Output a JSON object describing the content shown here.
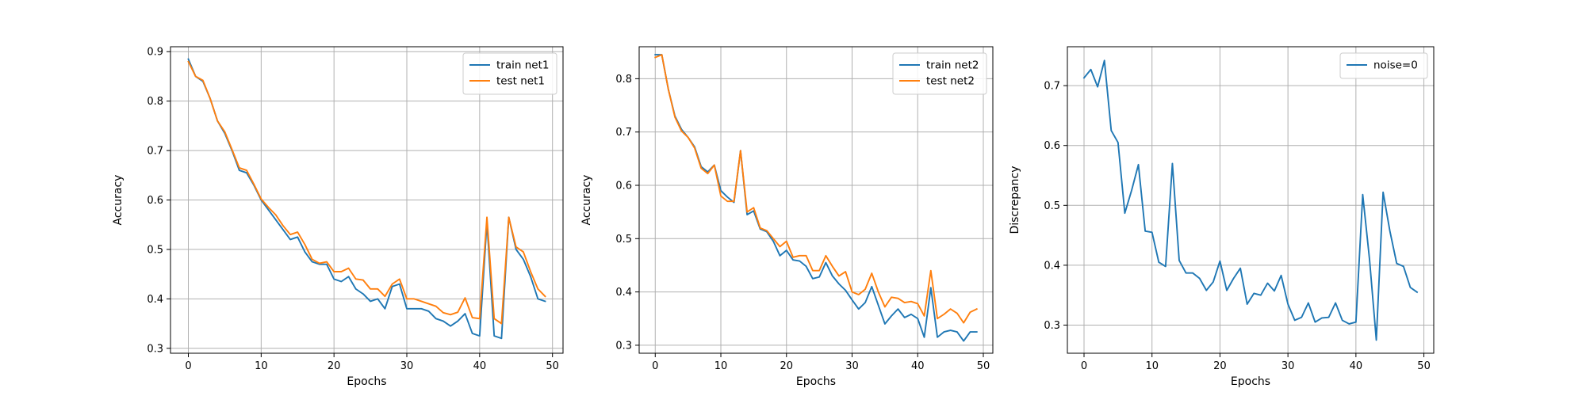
{
  "chart_data": [
    {
      "type": "line",
      "xlabel": "Epochs",
      "ylabel": "Accuracy",
      "xlim": [
        -2.45,
        51.45
      ],
      "ylim": [
        0.29,
        0.91
      ],
      "xticks": [
        0,
        10,
        20,
        30,
        40,
        50
      ],
      "yticks": [
        0.3,
        0.4,
        0.5,
        0.6,
        0.7,
        0.8,
        0.9
      ],
      "grid": true,
      "legend_position": "upper right",
      "series": [
        {
          "name": "train net1",
          "color": "#1f77b4",
          "x": [
            0,
            1,
            2,
            3,
            4,
            5,
            6,
            7,
            8,
            9,
            10,
            11,
            12,
            13,
            14,
            15,
            16,
            17,
            18,
            19,
            20,
            21,
            22,
            23,
            24,
            25,
            26,
            27,
            28,
            29,
            30,
            31,
            32,
            33,
            34,
            35,
            36,
            37,
            38,
            39,
            40,
            41,
            42,
            43,
            44,
            45,
            46,
            47,
            48,
            49
          ],
          "values": [
            0.885,
            0.85,
            0.84,
            0.805,
            0.76,
            0.735,
            0.7,
            0.66,
            0.655,
            0.63,
            0.6,
            0.58,
            0.56,
            0.54,
            0.52,
            0.525,
            0.495,
            0.475,
            0.47,
            0.47,
            0.44,
            0.435,
            0.445,
            0.42,
            0.41,
            0.395,
            0.4,
            0.38,
            0.425,
            0.43,
            0.38,
            0.38,
            0.38,
            0.375,
            0.36,
            0.355,
            0.345,
            0.355,
            0.37,
            0.33,
            0.325,
            0.555,
            0.325,
            0.32,
            0.565,
            0.5,
            0.48,
            0.445,
            0.4,
            0.395
          ]
        },
        {
          "name": "test net1",
          "color": "#ff7f0e",
          "x": [
            0,
            1,
            2,
            3,
            4,
            5,
            6,
            7,
            8,
            9,
            10,
            11,
            12,
            13,
            14,
            15,
            16,
            17,
            18,
            19,
            20,
            21,
            22,
            23,
            24,
            25,
            26,
            27,
            28,
            29,
            30,
            31,
            32,
            33,
            34,
            35,
            36,
            37,
            38,
            39,
            40,
            41,
            42,
            43,
            44,
            45,
            46,
            47,
            48,
            49
          ],
          "values": [
            0.88,
            0.85,
            0.842,
            0.805,
            0.76,
            0.738,
            0.702,
            0.665,
            0.66,
            0.632,
            0.602,
            0.585,
            0.57,
            0.548,
            0.53,
            0.535,
            0.51,
            0.48,
            0.472,
            0.475,
            0.455,
            0.455,
            0.462,
            0.44,
            0.438,
            0.42,
            0.42,
            0.405,
            0.43,
            0.44,
            0.4,
            0.4,
            0.395,
            0.39,
            0.385,
            0.372,
            0.368,
            0.373,
            0.402,
            0.362,
            0.36,
            0.565,
            0.36,
            0.35,
            0.565,
            0.505,
            0.495,
            0.455,
            0.42,
            0.405
          ]
        }
      ]
    },
    {
      "type": "line",
      "xlabel": "Epochs",
      "ylabel": "Accuracy",
      "xlim": [
        -2.45,
        51.45
      ],
      "ylim": [
        0.285,
        0.86
      ],
      "xticks": [
        0,
        10,
        20,
        30,
        40,
        50
      ],
      "yticks": [
        0.3,
        0.4,
        0.5,
        0.6,
        0.7,
        0.8
      ],
      "grid": true,
      "legend_position": "upper right",
      "series": [
        {
          "name": "train net2",
          "color": "#1f77b4",
          "x": [
            0,
            1,
            2,
            3,
            4,
            5,
            6,
            7,
            8,
            9,
            10,
            11,
            12,
            13,
            14,
            15,
            16,
            17,
            18,
            19,
            20,
            21,
            22,
            23,
            24,
            25,
            26,
            27,
            28,
            29,
            30,
            31,
            32,
            33,
            34,
            35,
            36,
            37,
            38,
            39,
            40,
            41,
            42,
            43,
            44,
            45,
            46,
            47,
            48,
            49
          ],
          "values": [
            0.845,
            0.845,
            0.78,
            0.73,
            0.705,
            0.69,
            0.672,
            0.635,
            0.625,
            0.638,
            0.59,
            0.578,
            0.568,
            0.665,
            0.545,
            0.552,
            0.518,
            0.513,
            0.495,
            0.468,
            0.478,
            0.46,
            0.458,
            0.448,
            0.425,
            0.428,
            0.455,
            0.43,
            0.415,
            0.403,
            0.385,
            0.368,
            0.38,
            0.41,
            0.375,
            0.34,
            0.355,
            0.368,
            0.352,
            0.358,
            0.35,
            0.315,
            0.408,
            0.315,
            0.325,
            0.328,
            0.325,
            0.308,
            0.325,
            0.325
          ]
        },
        {
          "name": "test net2",
          "color": "#ff7f0e",
          "x": [
            0,
            1,
            2,
            3,
            4,
            5,
            6,
            7,
            8,
            9,
            10,
            11,
            12,
            13,
            14,
            15,
            16,
            17,
            18,
            19,
            20,
            21,
            22,
            23,
            24,
            25,
            26,
            27,
            28,
            29,
            30,
            31,
            32,
            33,
            34,
            35,
            36,
            37,
            38,
            39,
            40,
            41,
            42,
            43,
            44,
            45,
            46,
            47,
            48,
            49
          ],
          "values": [
            0.84,
            0.845,
            0.78,
            0.728,
            0.702,
            0.69,
            0.67,
            0.632,
            0.622,
            0.638,
            0.58,
            0.57,
            0.57,
            0.665,
            0.55,
            0.558,
            0.52,
            0.515,
            0.5,
            0.485,
            0.495,
            0.465,
            0.468,
            0.468,
            0.44,
            0.44,
            0.468,
            0.448,
            0.43,
            0.438,
            0.4,
            0.395,
            0.405,
            0.435,
            0.4,
            0.372,
            0.39,
            0.388,
            0.38,
            0.382,
            0.378,
            0.355,
            0.44,
            0.35,
            0.358,
            0.368,
            0.36,
            0.342,
            0.362,
            0.368
          ]
        }
      ]
    },
    {
      "type": "line",
      "xlabel": "Epochs",
      "ylabel": "Discrepancy",
      "xlim": [
        -2.45,
        51.45
      ],
      "ylim": [
        0.253,
        0.765
      ],
      "xticks": [
        0,
        10,
        20,
        30,
        40,
        50
      ],
      "yticks": [
        0.3,
        0.4,
        0.5,
        0.6,
        0.7
      ],
      "grid": true,
      "legend_position": "upper right",
      "series": [
        {
          "name": "noise=0",
          "color": "#1f77b4",
          "x": [
            0,
            1,
            2,
            3,
            4,
            5,
            6,
            7,
            8,
            9,
            10,
            11,
            12,
            13,
            14,
            15,
            16,
            17,
            18,
            19,
            20,
            21,
            22,
            23,
            24,
            25,
            26,
            27,
            28,
            29,
            30,
            31,
            32,
            33,
            34,
            35,
            36,
            37,
            38,
            39,
            40,
            41,
            42,
            43,
            44,
            45,
            46,
            47,
            48,
            49
          ],
          "values": [
            0.713,
            0.727,
            0.698,
            0.742,
            0.625,
            0.605,
            0.487,
            0.525,
            0.568,
            0.457,
            0.455,
            0.405,
            0.398,
            0.57,
            0.408,
            0.387,
            0.387,
            0.378,
            0.358,
            0.372,
            0.407,
            0.358,
            0.378,
            0.395,
            0.335,
            0.353,
            0.35,
            0.37,
            0.357,
            0.383,
            0.335,
            0.308,
            0.313,
            0.337,
            0.305,
            0.312,
            0.313,
            0.337,
            0.308,
            0.302,
            0.305,
            0.518,
            0.41,
            0.275,
            0.522,
            0.457,
            0.403,
            0.398,
            0.363,
            0.355
          ]
        }
      ]
    }
  ]
}
